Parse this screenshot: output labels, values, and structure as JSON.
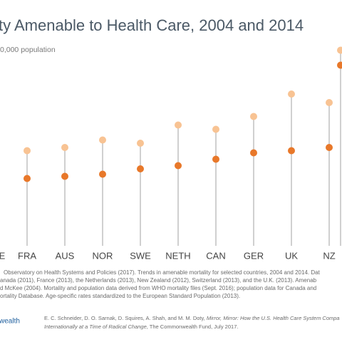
{
  "chart_data": {
    "type": "lollipop",
    "title": "ty Amenable to Health Care, 2004 and 2014",
    "subtitle": "0,000 population",
    "categories": [
      "E",
      "FRA",
      "AUS",
      "NOR",
      "SWE",
      "NETH",
      "CAN",
      "GER",
      "UK",
      "NZ",
      null
    ],
    "series": [
      {
        "color": "#f8c393",
        "values": [
          null,
          89,
          92,
          99,
          96,
          113,
          109,
          121,
          142,
          134,
          183
        ]
      },
      {
        "color": "#e8782a",
        "values": [
          null,
          63,
          65,
          67,
          72,
          75,
          81,
          87,
          89,
          92,
          169
        ]
      }
    ],
    "ylim": [
      0,
      230
    ],
    "stem_color": "#d0d0d0"
  },
  "footer": {
    "notes": [
      "Observatory on Health Systems and Policies (2017). Trends in amenable mortality for selected countries, 2004 and 2014. Dat",
      "anada (2011), France (2013), the Netherlands (2013), New Zealand (2012), Switzerland (2013), and the U.K. (2013). Amenab",
      "d McKee (2004). Mortality and population data derived from WHO mortality files (Sept. 2016); population data for Canada and",
      "ortality Database. Age-specific rates standardized to the European Standard Population (2013)."
    ],
    "logo": "wealth",
    "citation": [
      "E. C. Schneider, D. O. Sarnak, D. Squires, A. Shah, and M. M. Doty, ",
      "Mirror, Mirror: How the U.S. Health Care System Compa",
      "Internationally at a Time of Radical Change",
      ", The Commonwealth Fund, July 2017."
    ]
  }
}
